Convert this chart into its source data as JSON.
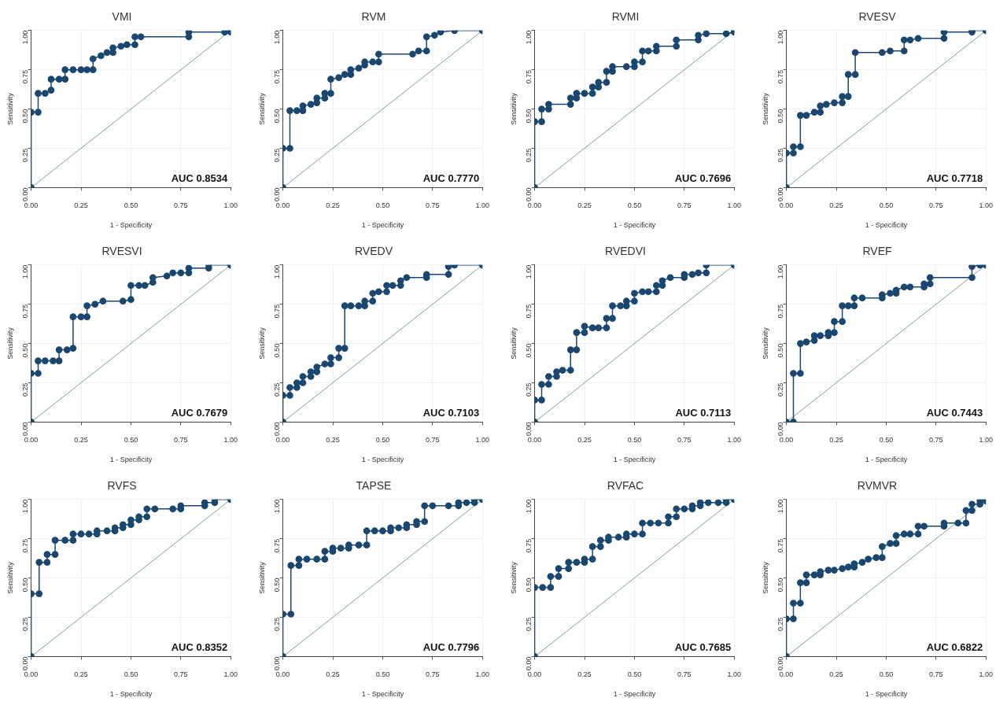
{
  "chart_data": [
    {
      "type": "line",
      "title": "VMI",
      "xlabel": "1 - Specificity",
      "ylabel": "Sensitivity",
      "annotations": [
        "AUC 0.8534"
      ],
      "xlim": [
        0,
        1
      ],
      "ylim": [
        0,
        1
      ],
      "xticks": [
        {
          "value": 0,
          "label": "0.00"
        },
        {
          "value": 0.25,
          "label": "0.25"
        },
        {
          "value": 0.5,
          "label": "0.50"
        },
        {
          "value": 0.75,
          "label": "0.75"
        },
        {
          "value": 1,
          "label": "1.00"
        }
      ],
      "yticks": [
        {
          "value": 0,
          "label": "0.00"
        },
        {
          "value": 0.25,
          "label": "0.25"
        },
        {
          "value": 0.5,
          "label": "0.50"
        },
        {
          "value": 0.75,
          "label": "0.75"
        },
        {
          "value": 1,
          "label": "1.00"
        }
      ],
      "grid": true,
      "marker": "circle",
      "series": [
        {
          "color": "#1a476f",
          "x": [
            0,
            0,
            0.035,
            0.035,
            0.07,
            0.1,
            0.1,
            0.14,
            0.17,
            0.17,
            0.21,
            0.25,
            0.28,
            0.31,
            0.31,
            0.35,
            0.38,
            0.41,
            0.41,
            0.45,
            0.48,
            0.52,
            0.52,
            0.55,
            0.79,
            0.79,
            0.97,
            1,
            1
          ],
          "values": [
            0,
            0.48,
            0.48,
            0.6,
            0.6,
            0.62,
            0.69,
            0.69,
            0.69,
            0.75,
            0.75,
            0.75,
            0.75,
            0.75,
            0.82,
            0.84,
            0.86,
            0.86,
            0.89,
            0.9,
            0.91,
            0.91,
            0.96,
            0.96,
            0.96,
            0.99,
            0.99,
            0.99,
            1
          ]
        },
        {
          "color": "#7a9e9a",
          "marker": "none",
          "x": [
            0,
            1
          ],
          "values": [
            0,
            1
          ]
        }
      ]
    },
    {
      "type": "line",
      "title": "RVM",
      "xlabel": "1 - Specificity",
      "ylabel": "Sensitivity",
      "annotations": [
        "AUC 0.7770"
      ],
      "xlim": [
        0,
        1
      ],
      "ylim": [
        0,
        1
      ],
      "xticks": [
        {
          "value": 0,
          "label": "0.00"
        },
        {
          "value": 0.25,
          "label": "0.25"
        },
        {
          "value": 0.5,
          "label": "0.50"
        },
        {
          "value": 0.75,
          "label": "0.75"
        },
        {
          "value": 1,
          "label": "1.00"
        }
      ],
      "yticks": [
        {
          "value": 0,
          "label": "0.00"
        },
        {
          "value": 0.25,
          "label": "0.25"
        },
        {
          "value": 0.5,
          "label": "0.50"
        },
        {
          "value": 0.75,
          "label": "0.75"
        },
        {
          "value": 1,
          "label": "1.00"
        }
      ],
      "grid": true,
      "marker": "circle",
      "series": [
        {
          "color": "#1a476f",
          "x": [
            0,
            0,
            0.035,
            0.035,
            0.07,
            0.1,
            0.1,
            0.14,
            0.17,
            0.17,
            0.21,
            0.21,
            0.24,
            0.24,
            0.28,
            0.31,
            0.34,
            0.34,
            0.38,
            0.41,
            0.41,
            0.45,
            0.48,
            0.48,
            0.65,
            0.68,
            0.72,
            0.72,
            0.76,
            0.79,
            0.86,
            1
          ],
          "values": [
            0,
            0.25,
            0.25,
            0.49,
            0.49,
            0.49,
            0.52,
            0.53,
            0.54,
            0.57,
            0.57,
            0.6,
            0.6,
            0.69,
            0.7,
            0.72,
            0.72,
            0.75,
            0.76,
            0.78,
            0.8,
            0.8,
            0.8,
            0.85,
            0.85,
            0.87,
            0.87,
            0.96,
            0.97,
            0.99,
            1,
            1
          ]
        },
        {
          "color": "#7a9e9a",
          "marker": "none",
          "x": [
            0,
            1
          ],
          "values": [
            0,
            1
          ]
        }
      ]
    },
    {
      "type": "line",
      "title": "RVMI",
      "xlabel": "1 - Specificity",
      "ylabel": "Sensitivity",
      "annotations": [
        "AUC 0.7696"
      ],
      "xlim": [
        0,
        1
      ],
      "ylim": [
        0,
        1
      ],
      "xticks": [
        {
          "value": 0,
          "label": "0.00"
        },
        {
          "value": 0.25,
          "label": "0.25"
        },
        {
          "value": 0.5,
          "label": "0.50"
        },
        {
          "value": 0.75,
          "label": "0.75"
        },
        {
          "value": 1,
          "label": "1.00"
        }
      ],
      "yticks": [
        {
          "value": 0,
          "label": "0.00"
        },
        {
          "value": 0.25,
          "label": "0.25"
        },
        {
          "value": 0.5,
          "label": "0.50"
        },
        {
          "value": 0.75,
          "label": "0.75"
        },
        {
          "value": 1,
          "label": "1.00"
        }
      ],
      "grid": true,
      "marker": "circle",
      "series": [
        {
          "color": "#1a476f",
          "x": [
            0,
            0,
            0.035,
            0.035,
            0.07,
            0.07,
            0.18,
            0.18,
            0.21,
            0.21,
            0.25,
            0.29,
            0.29,
            0.32,
            0.32,
            0.36,
            0.36,
            0.39,
            0.39,
            0.46,
            0.5,
            0.5,
            0.54,
            0.54,
            0.57,
            0.61,
            0.61,
            0.71,
            0.71,
            0.82,
            0.82,
            0.86,
            0.96,
            1,
            1
          ],
          "values": [
            0,
            0.42,
            0.42,
            0.5,
            0.5,
            0.53,
            0.53,
            0.57,
            0.57,
            0.6,
            0.6,
            0.6,
            0.64,
            0.64,
            0.67,
            0.67,
            0.74,
            0.74,
            0.77,
            0.77,
            0.77,
            0.8,
            0.8,
            0.87,
            0.87,
            0.87,
            0.9,
            0.9,
            0.94,
            0.94,
            0.97,
            0.98,
            0.98,
            0.99,
            1
          ]
        },
        {
          "color": "#7a9e9a",
          "marker": "none",
          "x": [
            0,
            1
          ],
          "values": [
            0,
            1
          ]
        }
      ]
    },
    {
      "type": "line",
      "title": "RVESV",
      "xlabel": "1 - Specificity",
      "ylabel": "Sensitivity",
      "annotations": [
        "AUC 0.7718"
      ],
      "xlim": [
        0,
        1
      ],
      "ylim": [
        0,
        1
      ],
      "xticks": [
        {
          "value": 0,
          "label": "0.00"
        },
        {
          "value": 0.25,
          "label": "0.25"
        },
        {
          "value": 0.5,
          "label": "0.50"
        },
        {
          "value": 0.75,
          "label": "0.75"
        },
        {
          "value": 1,
          "label": "1.00"
        }
      ],
      "yticks": [
        {
          "value": 0,
          "label": "0.00"
        },
        {
          "value": 0.25,
          "label": "0.25"
        },
        {
          "value": 0.5,
          "label": "0.50"
        },
        {
          "value": 0.75,
          "label": "0.75"
        },
        {
          "value": 1,
          "label": "1.00"
        }
      ],
      "grid": true,
      "marker": "circle",
      "series": [
        {
          "color": "#1a476f",
          "x": [
            0,
            0,
            0.035,
            0.035,
            0.07,
            0.07,
            0.1,
            0.14,
            0.17,
            0.17,
            0.2,
            0.24,
            0.28,
            0.28,
            0.31,
            0.31,
            0.345,
            0.345,
            0.48,
            0.52,
            0.59,
            0.59,
            0.62,
            0.66,
            0.79,
            0.79,
            0.93,
            0.93,
            1
          ],
          "values": [
            0,
            0.22,
            0.22,
            0.26,
            0.26,
            0.46,
            0.46,
            0.48,
            0.48,
            0.52,
            0.53,
            0.54,
            0.54,
            0.58,
            0.58,
            0.72,
            0.72,
            0.86,
            0.86,
            0.87,
            0.87,
            0.94,
            0.94,
            0.95,
            0.95,
            0.99,
            0.99,
            1,
            1
          ]
        },
        {
          "color": "#7a9e9a",
          "marker": "none",
          "x": [
            0,
            1
          ],
          "values": [
            0,
            1
          ]
        }
      ]
    },
    {
      "type": "line",
      "title": "RVESVI",
      "xlabel": "1 - Specificity",
      "ylabel": "Sensitivity",
      "annotations": [
        "AUC 0.7679"
      ],
      "xlim": [
        0,
        1
      ],
      "ylim": [
        0,
        1
      ],
      "xticks": [
        {
          "value": 0,
          "label": "0.00"
        },
        {
          "value": 0.25,
          "label": "0.25"
        },
        {
          "value": 0.5,
          "label": "0.50"
        },
        {
          "value": 0.75,
          "label": "0.75"
        },
        {
          "value": 1,
          "label": "1.00"
        }
      ],
      "yticks": [
        {
          "value": 0,
          "label": "0.00"
        },
        {
          "value": 0.25,
          "label": "0.25"
        },
        {
          "value": 0.5,
          "label": "0.50"
        },
        {
          "value": 0.75,
          "label": "0.75"
        },
        {
          "value": 1,
          "label": "1.00"
        }
      ],
      "grid": true,
      "marker": "circle",
      "series": [
        {
          "color": "#1a476f",
          "x": [
            0,
            0,
            0.035,
            0.035,
            0.07,
            0.11,
            0.14,
            0.14,
            0.18,
            0.21,
            0.21,
            0.25,
            0.28,
            0.28,
            0.32,
            0.36,
            0.46,
            0.5,
            0.5,
            0.54,
            0.57,
            0.61,
            0.61,
            0.68,
            0.71,
            0.75,
            0.79,
            0.79,
            0.89,
            0.89,
            1
          ],
          "values": [
            0,
            0.31,
            0.31,
            0.39,
            0.39,
            0.39,
            0.39,
            0.46,
            0.46,
            0.47,
            0.67,
            0.67,
            0.67,
            0.74,
            0.75,
            0.77,
            0.77,
            0.78,
            0.87,
            0.87,
            0.87,
            0.89,
            0.92,
            0.93,
            0.95,
            0.95,
            0.95,
            0.98,
            0.98,
            1,
            1
          ]
        },
        {
          "color": "#7a9e9a",
          "marker": "none",
          "x": [
            0,
            1
          ],
          "values": [
            0,
            1
          ]
        }
      ]
    },
    {
      "type": "line",
      "title": "RVEDV",
      "xlabel": "1 - Specificity",
      "ylabel": "Sensitivity",
      "annotations": [
        "AUC 0.7103"
      ],
      "xlim": [
        0,
        1
      ],
      "ylim": [
        0,
        1
      ],
      "xticks": [
        {
          "value": 0,
          "label": "0.00"
        },
        {
          "value": 0.25,
          "label": "0.25"
        },
        {
          "value": 0.5,
          "label": "0.50"
        },
        {
          "value": 0.75,
          "label": "0.75"
        },
        {
          "value": 1,
          "label": "1.00"
        }
      ],
      "yticks": [
        {
          "value": 0,
          "label": "0.00"
        },
        {
          "value": 0.25,
          "label": "0.25"
        },
        {
          "value": 0.5,
          "label": "0.50"
        },
        {
          "value": 0.75,
          "label": "0.75"
        },
        {
          "value": 1,
          "label": "1.00"
        }
      ],
      "grid": true,
      "marker": "circle",
      "series": [
        {
          "color": "#1a476f",
          "x": [
            0,
            0,
            0.035,
            0.035,
            0.07,
            0.07,
            0.1,
            0.1,
            0.14,
            0.14,
            0.17,
            0.17,
            0.21,
            0.24,
            0.24,
            0.28,
            0.28,
            0.31,
            0.31,
            0.34,
            0.38,
            0.41,
            0.41,
            0.45,
            0.45,
            0.48,
            0.52,
            0.52,
            0.55,
            0.59,
            0.59,
            0.62,
            0.72,
            0.72,
            0.83,
            0.83,
            0.86,
            1
          ],
          "values": [
            0,
            0.17,
            0.17,
            0.22,
            0.22,
            0.25,
            0.25,
            0.29,
            0.29,
            0.32,
            0.32,
            0.35,
            0.37,
            0.37,
            0.41,
            0.41,
            0.47,
            0.47,
            0.74,
            0.74,
            0.74,
            0.74,
            0.77,
            0.77,
            0.82,
            0.83,
            0.83,
            0.87,
            0.87,
            0.87,
            0.9,
            0.92,
            0.92,
            0.94,
            0.94,
            0.99,
            1,
            1
          ]
        },
        {
          "color": "#7a9e9a",
          "marker": "none",
          "x": [
            0,
            1
          ],
          "values": [
            0,
            1
          ]
        }
      ]
    },
    {
      "type": "line",
      "title": "RVEDVI",
      "xlabel": "1 - Specificity",
      "ylabel": "Sensitivity",
      "annotations": [
        "AUC 0.7113"
      ],
      "xlim": [
        0,
        1
      ],
      "ylim": [
        0,
        1
      ],
      "xticks": [
        {
          "value": 0,
          "label": "0.00"
        },
        {
          "value": 0.25,
          "label": "0.25"
        },
        {
          "value": 0.5,
          "label": "0.50"
        },
        {
          "value": 0.75,
          "label": "0.75"
        },
        {
          "value": 1,
          "label": "1.00"
        }
      ],
      "yticks": [
        {
          "value": 0,
          "label": "0.00"
        },
        {
          "value": 0.25,
          "label": "0.25"
        },
        {
          "value": 0.5,
          "label": "0.50"
        },
        {
          "value": 0.75,
          "label": "0.75"
        },
        {
          "value": 1,
          "label": "1.00"
        }
      ],
      "grid": true,
      "marker": "circle",
      "series": [
        {
          "color": "#1a476f",
          "x": [
            0,
            0,
            0.035,
            0.035,
            0.07,
            0.07,
            0.11,
            0.11,
            0.14,
            0.18,
            0.18,
            0.21,
            0.21,
            0.25,
            0.25,
            0.29,
            0.32,
            0.36,
            0.36,
            0.39,
            0.39,
            0.43,
            0.46,
            0.46,
            0.5,
            0.5,
            0.54,
            0.57,
            0.61,
            0.61,
            0.64,
            0.64,
            0.68,
            0.75,
            0.75,
            0.79,
            0.82,
            0.86,
            0.86,
            1
          ],
          "values": [
            0,
            0.14,
            0.14,
            0.24,
            0.24,
            0.29,
            0.29,
            0.32,
            0.33,
            0.33,
            0.46,
            0.46,
            0.57,
            0.57,
            0.61,
            0.6,
            0.6,
            0.6,
            0.66,
            0.66,
            0.74,
            0.74,
            0.74,
            0.77,
            0.77,
            0.82,
            0.83,
            0.83,
            0.83,
            0.87,
            0.87,
            0.9,
            0.92,
            0.92,
            0.94,
            0.94,
            0.95,
            0.95,
            1,
            1
          ]
        },
        {
          "color": "#7a9e9a",
          "marker": "none",
          "x": [
            0,
            1
          ],
          "values": [
            0,
            1
          ]
        }
      ]
    },
    {
      "type": "line",
      "title": "RVEF",
      "xlabel": "1 - Specificity",
      "ylabel": "Sensitivity",
      "annotations": [
        "AUC 0.7443"
      ],
      "xlim": [
        0,
        1
      ],
      "ylim": [
        0,
        1
      ],
      "xticks": [
        {
          "value": 0,
          "label": "0.00"
        },
        {
          "value": 0.25,
          "label": "0.25"
        },
        {
          "value": 0.5,
          "label": "0.50"
        },
        {
          "value": 0.75,
          "label": "0.75"
        },
        {
          "value": 1,
          "label": "1.00"
        }
      ],
      "yticks": [
        {
          "value": 0,
          "label": "0.00"
        },
        {
          "value": 0.25,
          "label": "0.25"
        },
        {
          "value": 0.5,
          "label": "0.50"
        },
        {
          "value": 0.75,
          "label": "0.75"
        },
        {
          "value": 1,
          "label": "1.00"
        }
      ],
      "grid": true,
      "marker": "circle",
      "series": [
        {
          "color": "#1a476f",
          "x": [
            0,
            0.035,
            0.035,
            0.07,
            0.07,
            0.1,
            0.14,
            0.14,
            0.17,
            0.21,
            0.21,
            0.24,
            0.24,
            0.28,
            0.28,
            0.31,
            0.34,
            0.34,
            0.38,
            0.48,
            0.48,
            0.52,
            0.55,
            0.55,
            0.59,
            0.62,
            0.69,
            0.69,
            0.72,
            0.72,
            0.93,
            0.93,
            0.97,
            1
          ],
          "values": [
            0,
            0,
            0.31,
            0.31,
            0.5,
            0.51,
            0.52,
            0.55,
            0.55,
            0.55,
            0.57,
            0.57,
            0.64,
            0.64,
            0.74,
            0.74,
            0.74,
            0.79,
            0.79,
            0.79,
            0.81,
            0.82,
            0.82,
            0.84,
            0.86,
            0.86,
            0.86,
            0.88,
            0.88,
            0.92,
            0.92,
            0.99,
            1,
            1
          ]
        },
        {
          "color": "#7a9e9a",
          "marker": "none",
          "x": [
            0,
            1
          ],
          "values": [
            0,
            1
          ]
        }
      ]
    },
    {
      "type": "line",
      "title": "RVFS",
      "xlabel": "1 - Specificity",
      "ylabel": "Sensitivity",
      "annotations": [
        "AUC 0.8352"
      ],
      "xlim": [
        0,
        1
      ],
      "ylim": [
        0,
        1
      ],
      "xticks": [
        {
          "value": 0,
          "label": "0.00"
        },
        {
          "value": 0.25,
          "label": "0.25"
        },
        {
          "value": 0.5,
          "label": "0.50"
        },
        {
          "value": 0.75,
          "label": "0.75"
        },
        {
          "value": 1,
          "label": "1.00"
        }
      ],
      "yticks": [
        {
          "value": 0,
          "label": "0.00"
        },
        {
          "value": 0.25,
          "label": "0.25"
        },
        {
          "value": 0.5,
          "label": "0.50"
        },
        {
          "value": 0.75,
          "label": "0.75"
        },
        {
          "value": 1,
          "label": "1.00"
        }
      ],
      "grid": true,
      "marker": "circle",
      "series": [
        {
          "color": "#1a476f",
          "x": [
            0,
            0,
            0.04,
            0.04,
            0.08,
            0.08,
            0.12,
            0.12,
            0.17,
            0.21,
            0.21,
            0.25,
            0.29,
            0.33,
            0.33,
            0.38,
            0.42,
            0.42,
            0.46,
            0.46,
            0.5,
            0.5,
            0.54,
            0.54,
            0.58,
            0.58,
            0.62,
            0.71,
            0.75,
            0.75,
            0.87,
            0.87,
            0.92,
            0.92,
            1
          ],
          "values": [
            0,
            0.4,
            0.4,
            0.6,
            0.6,
            0.65,
            0.65,
            0.74,
            0.74,
            0.74,
            0.78,
            0.78,
            0.78,
            0.78,
            0.8,
            0.8,
            0.8,
            0.82,
            0.82,
            0.84,
            0.84,
            0.87,
            0.87,
            0.89,
            0.89,
            0.94,
            0.94,
            0.94,
            0.94,
            0.96,
            0.96,
            0.98,
            0.98,
            1,
            1
          ]
        },
        {
          "color": "#7a9e9a",
          "marker": "none",
          "x": [
            0,
            1
          ],
          "values": [
            0,
            1
          ]
        }
      ]
    },
    {
      "type": "line",
      "title": "TAPSE",
      "xlabel": "1 - Specificity",
      "ylabel": "Sensitivity",
      "annotations": [
        "AUC 0.7796"
      ],
      "xlim": [
        0,
        1
      ],
      "ylim": [
        0,
        1
      ],
      "xticks": [
        {
          "value": 0,
          "label": "0.00"
        },
        {
          "value": 0.25,
          "label": "0.25"
        },
        {
          "value": 0.5,
          "label": "0.50"
        },
        {
          "value": 0.75,
          "label": "0.75"
        },
        {
          "value": 1,
          "label": "1.00"
        }
      ],
      "yticks": [
        {
          "value": 0,
          "label": "0.00"
        },
        {
          "value": 0.25,
          "label": "0.25"
        },
        {
          "value": 0.5,
          "label": "0.50"
        },
        {
          "value": 0.75,
          "label": "0.75"
        },
        {
          "value": 1,
          "label": "1.00"
        }
      ],
      "grid": true,
      "marker": "circle",
      "series": [
        {
          "color": "#1a476f",
          "x": [
            0,
            0,
            0.04,
            0.04,
            0.08,
            0.08,
            0.12,
            0.17,
            0.21,
            0.21,
            0.25,
            0.25,
            0.29,
            0.33,
            0.33,
            0.38,
            0.42,
            0.42,
            0.46,
            0.5,
            0.54,
            0.54,
            0.58,
            0.62,
            0.62,
            0.67,
            0.67,
            0.71,
            0.71,
            0.75,
            0.83,
            0.88,
            0.88,
            0.92,
            0.96,
            0.96,
            1
          ],
          "values": [
            0,
            0.27,
            0.27,
            0.58,
            0.58,
            0.62,
            0.62,
            0.62,
            0.62,
            0.67,
            0.67,
            0.69,
            0.69,
            0.69,
            0.71,
            0.71,
            0.71,
            0.8,
            0.8,
            0.8,
            0.8,
            0.82,
            0.82,
            0.82,
            0.84,
            0.84,
            0.86,
            0.86,
            0.96,
            0.96,
            0.96,
            0.96,
            0.98,
            0.98,
            0.98,
            1,
            1
          ]
        },
        {
          "color": "#7a9e9a",
          "marker": "none",
          "x": [
            0,
            1
          ],
          "values": [
            0,
            1
          ]
        }
      ]
    },
    {
      "type": "line",
      "title": "RVFAC",
      "xlabel": "1 - Specificity",
      "ylabel": "Sensitivity",
      "annotations": [
        "AUC 0.7685"
      ],
      "xlim": [
        0,
        1
      ],
      "ylim": [
        0,
        1
      ],
      "xticks": [
        {
          "value": 0,
          "label": "0.00"
        },
        {
          "value": 0.25,
          "label": "0.25"
        },
        {
          "value": 0.5,
          "label": "0.50"
        },
        {
          "value": 0.75,
          "label": "0.75"
        },
        {
          "value": 1,
          "label": "1.00"
        }
      ],
      "yticks": [
        {
          "value": 0,
          "label": "0.00"
        },
        {
          "value": 0.25,
          "label": "0.25"
        },
        {
          "value": 0.5,
          "label": "0.50"
        },
        {
          "value": 0.75,
          "label": "0.75"
        },
        {
          "value": 1,
          "label": "1.00"
        }
      ],
      "grid": true,
      "marker": "circle",
      "series": [
        {
          "color": "#1a476f",
          "x": [
            0,
            0,
            0.04,
            0.08,
            0.08,
            0.12,
            0.12,
            0.17,
            0.17,
            0.21,
            0.25,
            0.25,
            0.29,
            0.29,
            0.33,
            0.33,
            0.37,
            0.37,
            0.42,
            0.46,
            0.46,
            0.5,
            0.54,
            0.54,
            0.58,
            0.62,
            0.67,
            0.67,
            0.71,
            0.71,
            0.75,
            0.79,
            0.79,
            0.83,
            0.83,
            0.87,
            0.92,
            0.96,
            0.96,
            1
          ],
          "values": [
            0,
            0.44,
            0.44,
            0.44,
            0.51,
            0.51,
            0.56,
            0.56,
            0.6,
            0.6,
            0.6,
            0.62,
            0.62,
            0.7,
            0.7,
            0.74,
            0.74,
            0.76,
            0.76,
            0.76,
            0.78,
            0.78,
            0.78,
            0.85,
            0.85,
            0.85,
            0.85,
            0.89,
            0.89,
            0.94,
            0.94,
            0.94,
            0.96,
            0.96,
            0.98,
            0.98,
            0.98,
            0.98,
            1,
            1
          ]
        },
        {
          "color": "#7a9e9a",
          "marker": "none",
          "x": [
            0,
            1
          ],
          "values": [
            0,
            1
          ]
        }
      ]
    },
    {
      "type": "line",
      "title": "RVMVR",
      "xlabel": "1 - Specificity",
      "ylabel": "Sensitivity",
      "annotations": [
        "AUC 0.6822"
      ],
      "xlim": [
        0,
        1
      ],
      "ylim": [
        0,
        1
      ],
      "xticks": [
        {
          "value": 0,
          "label": "0.00"
        },
        {
          "value": 0.25,
          "label": "0.25"
        },
        {
          "value": 0.5,
          "label": "0.50"
        },
        {
          "value": 0.75,
          "label": "0.75"
        },
        {
          "value": 1,
          "label": "1.00"
        }
      ],
      "yticks": [
        {
          "value": 0,
          "label": "0.00"
        },
        {
          "value": 0.25,
          "label": "0.25"
        },
        {
          "value": 0.5,
          "label": "0.50"
        },
        {
          "value": 0.75,
          "label": "0.75"
        },
        {
          "value": 1,
          "label": "1.00"
        }
      ],
      "grid": true,
      "marker": "circle",
      "series": [
        {
          "color": "#1a476f",
          "x": [
            0,
            0,
            0.035,
            0.035,
            0.07,
            0.07,
            0.1,
            0.1,
            0.14,
            0.17,
            0.17,
            0.21,
            0.24,
            0.28,
            0.31,
            0.34,
            0.34,
            0.38,
            0.41,
            0.45,
            0.48,
            0.48,
            0.52,
            0.55,
            0.55,
            0.59,
            0.62,
            0.66,
            0.66,
            0.69,
            0.79,
            0.79,
            0.86,
            0.9,
            0.9,
            0.93,
            0.93,
            0.97,
            0.97,
            1
          ],
          "values": [
            0,
            0.24,
            0.24,
            0.34,
            0.34,
            0.47,
            0.47,
            0.52,
            0.52,
            0.52,
            0.54,
            0.55,
            0.55,
            0.56,
            0.57,
            0.57,
            0.59,
            0.6,
            0.62,
            0.63,
            0.63,
            0.7,
            0.72,
            0.72,
            0.77,
            0.78,
            0.78,
            0.78,
            0.83,
            0.83,
            0.83,
            0.85,
            0.85,
            0.85,
            0.93,
            0.93,
            0.97,
            0.97,
            0.99,
            0.99
          ]
        },
        {
          "color": "#7a9e9a",
          "marker": "none",
          "x": [
            0,
            1
          ],
          "values": [
            0,
            1
          ]
        }
      ]
    }
  ]
}
